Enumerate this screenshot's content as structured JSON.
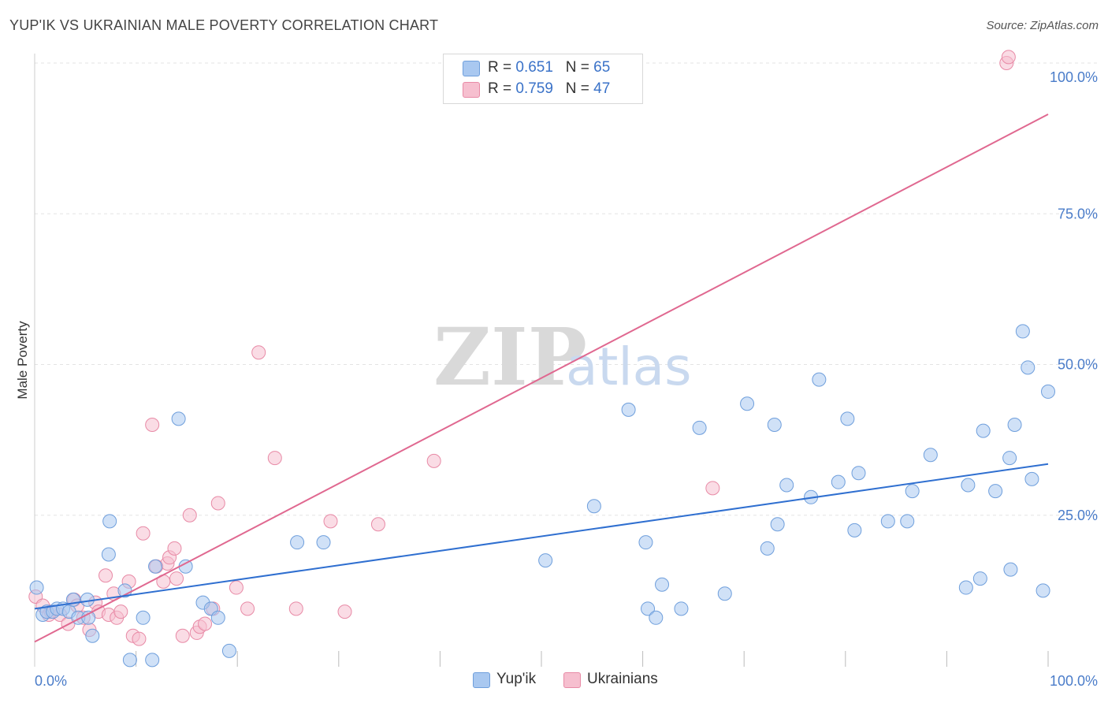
{
  "title": "YUP'IK VS UKRAINIAN MALE POVERTY CORRELATION CHART",
  "source": "Source: ZipAtlas.com",
  "watermark": {
    "zip": "ZIP",
    "atlas": "atlas"
  },
  "legend": {
    "rows": [
      {
        "r_label": "R = ",
        "r_value": "0.651",
        "n_label": "N = ",
        "n_value": "65"
      },
      {
        "r_label": "R = ",
        "r_value": "0.759",
        "n_label": "N = ",
        "n_value": "47"
      }
    ]
  },
  "bottom_legend": {
    "series1": "Yup'ik",
    "series2": "Ukrainians"
  },
  "colors": {
    "yupik_fill": "#a9c8f0",
    "yupik_stroke": "#6f9fdc",
    "yupik_line": "#2f6fd0",
    "ukr_fill": "#f6bfcf",
    "ukr_stroke": "#e88aa6",
    "ukr_line": "#e06890",
    "tick_text": "#4a7cc9",
    "grid": "#e3e3e3"
  },
  "chart_data": {
    "type": "scatter",
    "title": "YUP'IK VS UKRAINIAN MALE POVERTY CORRELATION CHART",
    "xlabel": "",
    "ylabel": "Male Poverty",
    "xlim": [
      0,
      100
    ],
    "ylim": [
      0,
      100
    ],
    "x_tick_labels": [
      "0.0%",
      "100.0%"
    ],
    "y_tick_labels": [
      {
        "value": 25,
        "label": "25.0%"
      },
      {
        "value": 50,
        "label": "50.0%"
      },
      {
        "value": 75,
        "label": "75.0%"
      },
      {
        "value": 100,
        "label": "100.0%"
      }
    ],
    "grid": "horizontal dashed",
    "legend_position": "top-center",
    "series": [
      {
        "name": "Yup'ik",
        "R": 0.651,
        "N": 65,
        "trend": {
          "x": [
            0,
            100
          ],
          "y": [
            9.5,
            33.5
          ]
        },
        "points": [
          [
            0.2,
            13
          ],
          [
            0.8,
            8.5
          ],
          [
            1.2,
            9
          ],
          [
            1.8,
            9
          ],
          [
            2.2,
            9.5
          ],
          [
            2.8,
            9.5
          ],
          [
            3.4,
            9
          ],
          [
            3.8,
            11
          ],
          [
            4.3,
            8
          ],
          [
            5.2,
            11
          ],
          [
            5.3,
            8
          ],
          [
            5.7,
            5
          ],
          [
            7.3,
            18.5
          ],
          [
            7.4,
            24
          ],
          [
            8.9,
            12.5
          ],
          [
            9.4,
            1
          ],
          [
            10.7,
            8
          ],
          [
            11.6,
            1
          ],
          [
            11.9,
            16.5
          ],
          [
            14.2,
            41
          ],
          [
            14.9,
            16.5
          ],
          [
            16.6,
            10.5
          ],
          [
            17.4,
            9.5
          ],
          [
            18.1,
            8
          ],
          [
            19.2,
            2.5
          ],
          [
            25.9,
            20.5
          ],
          [
            28.5,
            20.5
          ],
          [
            50.4,
            17.5
          ],
          [
            55.2,
            26.5
          ],
          [
            58.6,
            42.5
          ],
          [
            60.5,
            9.5
          ],
          [
            60.3,
            20.5
          ],
          [
            61.3,
            8
          ],
          [
            61.9,
            13.5
          ],
          [
            63.8,
            9.5
          ],
          [
            65.6,
            39.5
          ],
          [
            68.1,
            12
          ],
          [
            70.3,
            43.5
          ],
          [
            72.3,
            19.5
          ],
          [
            73,
            40
          ],
          [
            73.3,
            23.5
          ],
          [
            74.2,
            30
          ],
          [
            76.6,
            28
          ],
          [
            77.4,
            47.5
          ],
          [
            79.3,
            30.5
          ],
          [
            80.2,
            41
          ],
          [
            80.9,
            22.5
          ],
          [
            81.3,
            32
          ],
          [
            84.2,
            24
          ],
          [
            86.1,
            24
          ],
          [
            86.6,
            29
          ],
          [
            88.4,
            35
          ],
          [
            91.9,
            13
          ],
          [
            92.1,
            30
          ],
          [
            93.3,
            14.5
          ],
          [
            93.6,
            39
          ],
          [
            94.8,
            29
          ],
          [
            96.2,
            34.5
          ],
          [
            96.3,
            16
          ],
          [
            96.7,
            40
          ],
          [
            97.5,
            55.5
          ],
          [
            98,
            49.5
          ],
          [
            98.4,
            31
          ],
          [
            99.5,
            12.5
          ],
          [
            100,
            45.5
          ]
        ]
      },
      {
        "name": "Ukrainians",
        "R": 0.759,
        "N": 47,
        "trend": {
          "x": [
            0,
            100
          ],
          "y": [
            4,
            91.5
          ]
        },
        "points": [
          [
            0.1,
            11.5
          ],
          [
            0.8,
            10
          ],
          [
            1.4,
            8.5
          ],
          [
            2.5,
            8.5
          ],
          [
            3.3,
            7
          ],
          [
            3.9,
            11
          ],
          [
            4.2,
            10
          ],
          [
            4.8,
            8
          ],
          [
            5.4,
            6
          ],
          [
            6,
            10.5
          ],
          [
            6.3,
            9
          ],
          [
            7,
            15
          ],
          [
            7.3,
            8.5
          ],
          [
            7.8,
            12
          ],
          [
            8.1,
            8
          ],
          [
            8.5,
            9
          ],
          [
            9.3,
            14
          ],
          [
            9.7,
            5
          ],
          [
            10.3,
            4.5
          ],
          [
            10.7,
            22
          ],
          [
            11.6,
            40
          ],
          [
            12,
            16.5
          ],
          [
            12.7,
            14
          ],
          [
            13.1,
            17
          ],
          [
            13.3,
            18
          ],
          [
            13.8,
            19.5
          ],
          [
            14,
            14.5
          ],
          [
            14.6,
            5
          ],
          [
            15.3,
            25
          ],
          [
            16,
            5.5
          ],
          [
            16.3,
            6.5
          ],
          [
            16.8,
            7
          ],
          [
            17.6,
            9.5
          ],
          [
            18.1,
            27
          ],
          [
            19.9,
            13
          ],
          [
            21,
            9.5
          ],
          [
            22.1,
            52
          ],
          [
            23.7,
            34.5
          ],
          [
            25.8,
            9.5
          ],
          [
            29.2,
            24
          ],
          [
            30.6,
            9
          ],
          [
            33.9,
            23.5
          ],
          [
            39.4,
            34
          ],
          [
            66.9,
            29.5
          ],
          [
            95.9,
            100
          ],
          [
            96.1,
            101
          ],
          [
            1.6,
            9.0
          ]
        ]
      }
    ]
  }
}
